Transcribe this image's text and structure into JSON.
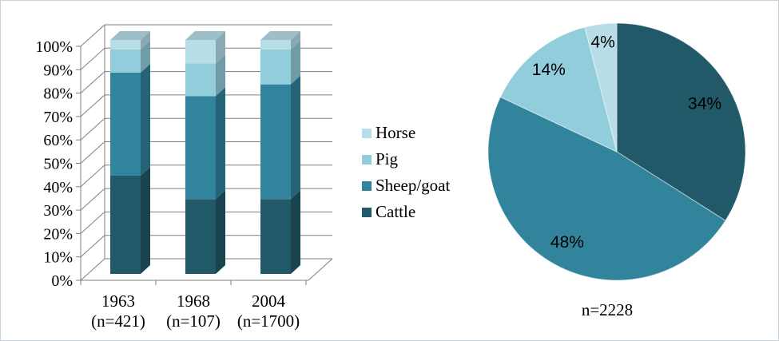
{
  "figure": {
    "background": "#ffffff",
    "border_color": "#ccd1d5",
    "grid_color": "#7f7f7f",
    "text_color": "#000000"
  },
  "legend": {
    "items": [
      {
        "label": "Horse",
        "color": "#b7dee8"
      },
      {
        "label": "Pig",
        "color": "#92cddc"
      },
      {
        "label": "Sheep/goat",
        "color": "#31849b"
      },
      {
        "label": "Cattle",
        "color": "#215968"
      }
    ]
  },
  "chart_data": [
    {
      "type": "bar",
      "subtype": "3d-100pct-stacked-column",
      "title": "",
      "categories": [
        "1963",
        "1968",
        "2004"
      ],
      "category_sublabels": [
        "(n=421)",
        "(n=107)",
        "(n=1700)"
      ],
      "series": [
        {
          "name": "Cattle",
          "color": "#215968",
          "values": [
            42,
            32,
            32
          ]
        },
        {
          "name": "Sheep/goat",
          "color": "#31849b",
          "values": [
            44,
            44,
            49
          ]
        },
        {
          "name": "Pig",
          "color": "#92cddc",
          "values": [
            10,
            14,
            15
          ]
        },
        {
          "name": "Horse",
          "color": "#b7dee8",
          "values": [
            4,
            10,
            4
          ]
        }
      ],
      "stack_order": "bottom-to-top",
      "ylim": [
        0,
        100
      ],
      "ytick_step": 10,
      "ytick_labels": [
        "0%",
        "10%",
        "20%",
        "30%",
        "40%",
        "50%",
        "60%",
        "70%",
        "80%",
        "90%",
        "100%"
      ],
      "grid": true,
      "legend_position": "right-of-chart"
    },
    {
      "type": "pie",
      "title": "",
      "start_angle": "12-oclock",
      "direction": "clockwise",
      "slices": [
        {
          "name": "Cattle",
          "pct": 34,
          "data_label": "34%",
          "color": "#215968"
        },
        {
          "name": "Sheep/goat",
          "pct": 48,
          "data_label": "48%",
          "color": "#31849b"
        },
        {
          "name": "Pig",
          "pct": 14,
          "data_label": "14%",
          "color": "#92cddc"
        },
        {
          "name": "Horse",
          "pct": 4,
          "data_label": "4%",
          "color": "#b7dee8"
        }
      ],
      "caption": "n=2228"
    }
  ]
}
